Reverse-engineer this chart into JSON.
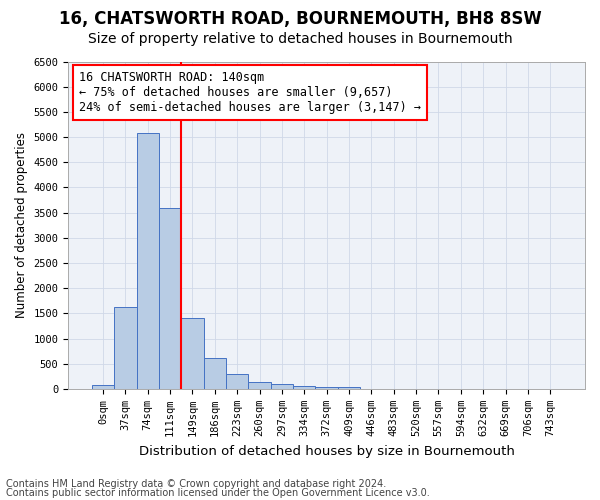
{
  "title": "16, CHATSWORTH ROAD, BOURNEMOUTH, BH8 8SW",
  "subtitle": "Size of property relative to detached houses in Bournemouth",
  "xlabel": "Distribution of detached houses by size in Bournemouth",
  "ylabel": "Number of detached properties",
  "bar_color": "#b8cce4",
  "bar_edge_color": "#4472c4",
  "vline_color": "red",
  "vline_x_index": 4,
  "annotation_text": "16 CHATSWORTH ROAD: 140sqm\n← 75% of detached houses are smaller (9,657)\n24% of semi-detached houses are larger (3,147) →",
  "annotation_box_color": "white",
  "annotation_box_edge_color": "red",
  "bar_heights": [
    75,
    1625,
    5075,
    3600,
    1400,
    610,
    300,
    140,
    90,
    55,
    40,
    40,
    0,
    0,
    0,
    0,
    0,
    0,
    0,
    0,
    0
  ],
  "categories": [
    "0sqm",
    "37sqm",
    "74sqm",
    "111sqm",
    "149sqm",
    "186sqm",
    "223sqm",
    "260sqm",
    "297sqm",
    "334sqm",
    "372sqm",
    "409sqm",
    "446sqm",
    "483sqm",
    "520sqm",
    "557sqm",
    "594sqm",
    "632sqm",
    "669sqm",
    "706sqm",
    "743sqm"
  ],
  "ylim": [
    0,
    6500
  ],
  "yticks": [
    0,
    500,
    1000,
    1500,
    2000,
    2500,
    3000,
    3500,
    4000,
    4500,
    5000,
    5500,
    6000,
    6500
  ],
  "grid_color": "#d0d8e8",
  "background_color": "#eef2f8",
  "footer1": "Contains HM Land Registry data © Crown copyright and database right 2024.",
  "footer2": "Contains public sector information licensed under the Open Government Licence v3.0.",
  "title_fontsize": 12,
  "subtitle_fontsize": 10,
  "xlabel_fontsize": 9.5,
  "ylabel_fontsize": 8.5,
  "tick_fontsize": 7.5,
  "annotation_fontsize": 8.5,
  "footer_fontsize": 7
}
